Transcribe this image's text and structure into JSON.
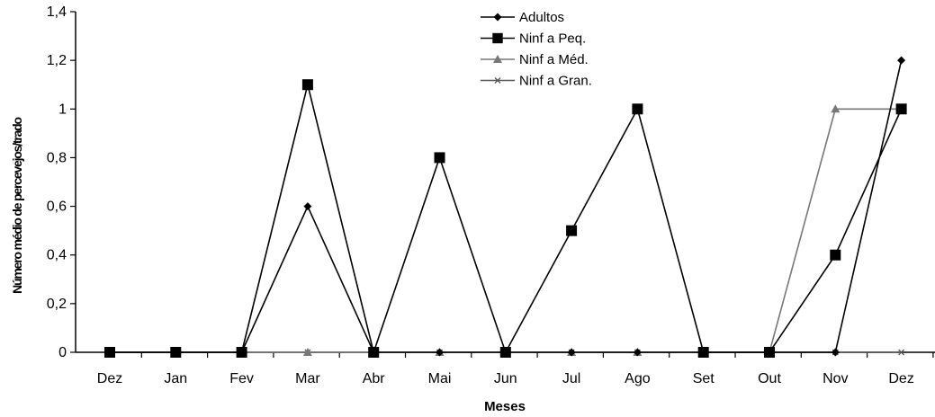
{
  "chart_data": {
    "type": "line",
    "title": "",
    "xlabel": "Meses",
    "ylabel": "Número médio de percevejos/trado",
    "categories": [
      "Dez",
      "Jan",
      "Fev",
      "Mar",
      "Abr",
      "Mai",
      "Jun",
      "Jul",
      "Ago",
      "Set",
      "Out",
      "Nov",
      "Dez"
    ],
    "ylim": [
      0,
      1.4
    ],
    "yticks": [
      "0",
      "0,2",
      "0,4",
      "0,6",
      "0,8",
      "1",
      "1,2",
      "1,4"
    ],
    "grid": false,
    "legend_position": "top-right",
    "series": [
      {
        "name": "Adultos",
        "marker": "diamond",
        "color": "#000000",
        "values": [
          0,
          0,
          0,
          0.6,
          0,
          0,
          0,
          0,
          0,
          0,
          0,
          0,
          1.2
        ]
      },
      {
        "name": "Ninf a Peq.",
        "marker": "square",
        "color": "#000000",
        "values": [
          0,
          0,
          0,
          1.1,
          0,
          0.8,
          0,
          0.5,
          1.0,
          0,
          0,
          0.4,
          1.0
        ]
      },
      {
        "name": "Ninf a Méd.",
        "marker": "triangle",
        "color": "#777777",
        "values": [
          0,
          0,
          0,
          0,
          0,
          0,
          0,
          0,
          0,
          0,
          0,
          1.0,
          1.0
        ]
      },
      {
        "name": "Ninf a Gran.",
        "marker": "x",
        "color": "#555555",
        "values": [
          0,
          0,
          0,
          0,
          0,
          0,
          0,
          0,
          0,
          0,
          0,
          0,
          0
        ]
      }
    ]
  }
}
